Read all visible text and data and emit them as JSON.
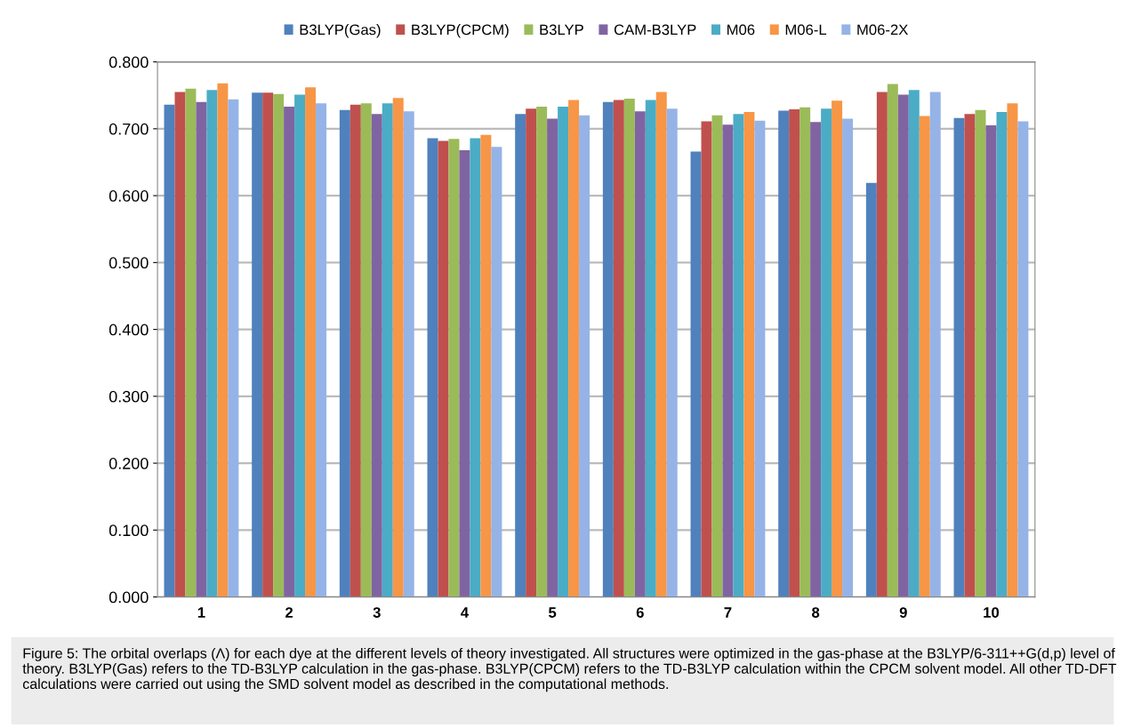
{
  "chart_data": {
    "type": "bar",
    "categories": [
      "1",
      "2",
      "3",
      "4",
      "5",
      "6",
      "7",
      "8",
      "9",
      "10"
    ],
    "series": [
      {
        "name": "B3LYP(Gas)",
        "color": "#4f81bd",
        "values": [
          0.736,
          0.754,
          0.728,
          0.686,
          0.722,
          0.74,
          0.666,
          0.727,
          0.619,
          0.716
        ]
      },
      {
        "name": "B3LYP(CPCM)",
        "color": "#c0504d",
        "values": [
          0.755,
          0.754,
          0.736,
          0.682,
          0.73,
          0.743,
          0.711,
          0.729,
          0.755,
          0.722
        ]
      },
      {
        "name": "B3LYP",
        "color": "#9bbb59",
        "values": [
          0.76,
          0.752,
          0.738,
          0.685,
          0.733,
          0.745,
          0.72,
          0.732,
          0.767,
          0.728
        ]
      },
      {
        "name": "CAM-B3LYP",
        "color": "#8064a2",
        "values": [
          0.74,
          0.733,
          0.722,
          0.668,
          0.715,
          0.726,
          0.706,
          0.71,
          0.751,
          0.705
        ]
      },
      {
        "name": "M06",
        "color": "#4bacc6",
        "values": [
          0.758,
          0.751,
          0.738,
          0.686,
          0.733,
          0.743,
          0.722,
          0.73,
          0.758,
          0.725
        ]
      },
      {
        "name": "M06-L",
        "color": "#f79646",
        "values": [
          0.768,
          0.762,
          0.746,
          0.691,
          0.743,
          0.755,
          0.725,
          0.742,
          0.719,
          0.738
        ]
      },
      {
        "name": "M06-2X",
        "color": "#95b3e6",
        "values": [
          0.744,
          0.738,
          0.726,
          0.673,
          0.72,
          0.73,
          0.712,
          0.715,
          0.755,
          0.711
        ]
      }
    ],
    "ylim": [
      0,
      0.8
    ],
    "yticks": [
      {
        "value": 0,
        "label": "0.000"
      },
      {
        "value": 0.1,
        "label": "0.100"
      },
      {
        "value": 0.2,
        "label": "0.200"
      },
      {
        "value": 0.3,
        "label": "0.300"
      },
      {
        "value": 0.4,
        "label": "0.400"
      },
      {
        "value": 0.5,
        "label": "0.500"
      },
      {
        "value": 0.6,
        "label": "0.600"
      },
      {
        "value": 0.7,
        "label": "0.700"
      },
      {
        "value": 0.8,
        "label": "0.800"
      }
    ],
    "grid": "y",
    "legend": "top",
    "annotations": [
      "Figure 5: The orbital overlaps (Λ) for each dye at the different levels of theory investigated. All structures were optimized in the gas-phase at the B3LYP/6-311++G(d,p) level of theory. B3LYP(Gas) refers to the TD-B3LYP calculation in the gas-phase. B3LYP(CPCM) refers to the TD-B3LYP calculation within the CPCM solvent model. All other TD-DFT calculations were carried out using the SMD solvent model as described in the computational methods."
    ]
  }
}
